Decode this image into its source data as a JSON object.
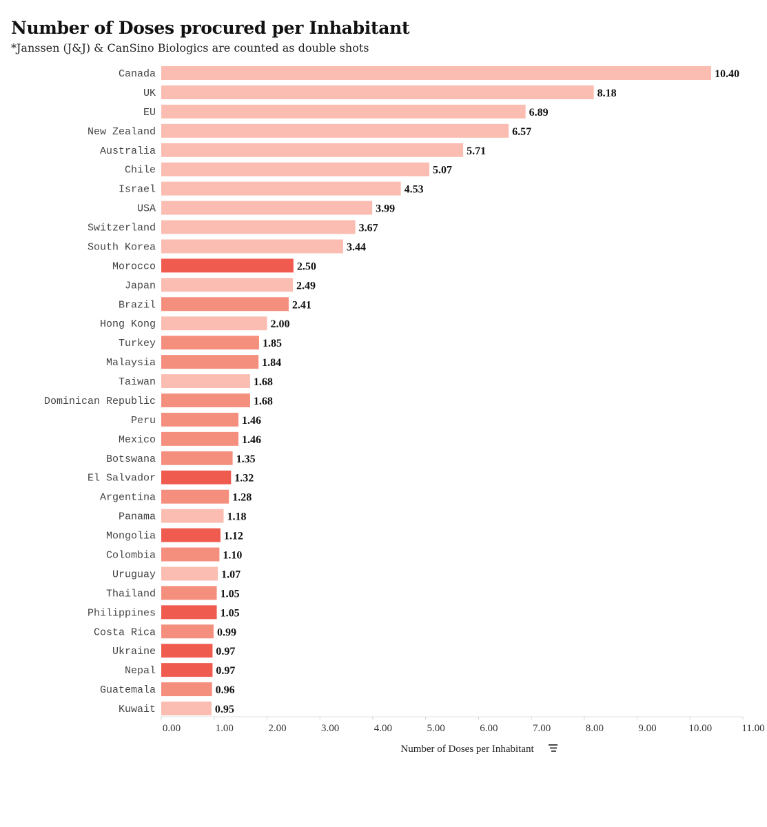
{
  "title": "Number of Doses procured per Inhabitant",
  "subtitle": "*Janssen (J&J) & CanSino Biologics are counted as double shots",
  "colors": {
    "light": "#fbbdb1",
    "medium": "#f58f7d",
    "dark": "#ef5c4f"
  },
  "chart_data": {
    "type": "bar",
    "orientation": "horizontal",
    "xlabel": "Number of Doses per Inhabitant",
    "xlabel_icon": "sort-icon",
    "xlim": [
      0,
      11
    ],
    "ticks": [
      "0.00",
      "1.00",
      "2.00",
      "3.00",
      "4.00",
      "5.00",
      "6.00",
      "7.00",
      "8.00",
      "9.00",
      "10.00",
      "11.00"
    ],
    "categories": [
      "Canada",
      "UK",
      "EU",
      "New Zealand",
      "Australia",
      "Chile",
      "Israel",
      "USA",
      "Switzerland",
      "South Korea",
      "Morocco",
      "Japan",
      "Brazil",
      "Hong Kong",
      "Turkey",
      "Malaysia",
      "Taiwan",
      "Dominican Republic",
      "Peru",
      "Mexico",
      "Botswana",
      "El Salvador",
      "Argentina",
      "Panama",
      "Mongolia",
      "Colombia",
      "Uruguay",
      "Thailand",
      "Philippines",
      "Costa Rica",
      "Ukraine",
      "Nepal",
      "Guatemala",
      "Kuwait"
    ],
    "values": [
      10.4,
      8.18,
      6.89,
      6.57,
      5.71,
      5.07,
      4.53,
      3.99,
      3.67,
      3.44,
      2.5,
      2.49,
      2.41,
      2.0,
      1.85,
      1.84,
      1.68,
      1.68,
      1.46,
      1.46,
      1.35,
      1.32,
      1.28,
      1.18,
      1.12,
      1.1,
      1.07,
      1.05,
      1.05,
      0.99,
      0.97,
      0.97,
      0.96,
      0.95
    ],
    "value_labels": [
      "10.40",
      "8.18",
      "6.89",
      "6.57",
      "5.71",
      "5.07",
      "4.53",
      "3.99",
      "3.67",
      "3.44",
      "2.50",
      "2.49",
      "2.41",
      "2.00",
      "1.85",
      "1.84",
      "1.68",
      "1.68",
      "1.46",
      "1.46",
      "1.35",
      "1.32",
      "1.28",
      "1.18",
      "1.12",
      "1.10",
      "1.07",
      "1.05",
      "1.05",
      "0.99",
      "0.97",
      "0.97",
      "0.96",
      "0.95"
    ],
    "color_groups": [
      "light",
      "light",
      "light",
      "light",
      "light",
      "light",
      "light",
      "light",
      "light",
      "light",
      "dark",
      "light",
      "medium",
      "light",
      "medium",
      "medium",
      "light",
      "medium",
      "medium",
      "medium",
      "medium",
      "dark",
      "medium",
      "light",
      "dark",
      "medium",
      "light",
      "medium",
      "dark",
      "medium",
      "dark",
      "dark",
      "medium",
      "light"
    ]
  }
}
